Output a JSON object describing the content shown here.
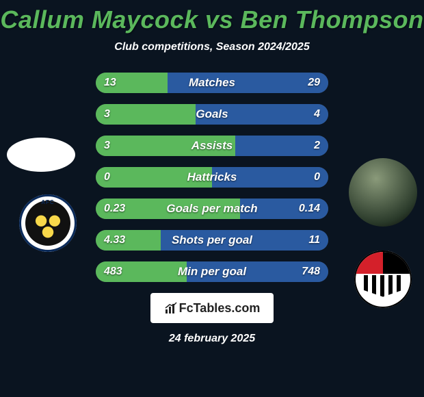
{
  "title_color": "#5bb85c",
  "player1": "Callum Maycock",
  "player2": "Ben Thompson",
  "subtitle": "Club competitions, Season 2024/2025",
  "date": "24 february 2025",
  "footer_brand": "FcTables.com",
  "colors": {
    "bar_left": "#5bb85c",
    "bar_right": "#2a5aa0",
    "bar_bg": "#4a4a4a",
    "text": "#ffffff"
  },
  "stats": [
    {
      "label": "Matches",
      "left_text": "13",
      "right_text": "29",
      "left_val": 13,
      "right_val": 29,
      "left_pct": 31,
      "right_pct": 69,
      "higher_better": true
    },
    {
      "label": "Goals",
      "left_text": "3",
      "right_text": "4",
      "left_val": 3,
      "right_val": 4,
      "left_pct": 43,
      "right_pct": 57,
      "higher_better": true
    },
    {
      "label": "Assists",
      "left_text": "3",
      "right_text": "2",
      "left_val": 3,
      "right_val": 2,
      "left_pct": 60,
      "right_pct": 40,
      "higher_better": true
    },
    {
      "label": "Hattricks",
      "left_text": "0",
      "right_text": "0",
      "left_val": 0,
      "right_val": 0,
      "left_pct": 50,
      "right_pct": 50,
      "higher_better": true
    },
    {
      "label": "Goals per match",
      "left_text": "0.23",
      "right_text": "0.14",
      "left_val": 0.23,
      "right_val": 0.14,
      "left_pct": 62,
      "right_pct": 38,
      "higher_better": true
    },
    {
      "label": "Shots per goal",
      "left_text": "4.33",
      "right_text": "11",
      "left_val": 4.33,
      "right_val": 11,
      "left_pct": 28,
      "right_pct": 72,
      "higher_better": false
    },
    {
      "label": "Min per goal",
      "left_text": "483",
      "right_text": "748",
      "left_val": 483,
      "right_val": 748,
      "left_pct": 39,
      "right_pct": 61,
      "higher_better": false
    }
  ],
  "avatars": {
    "club1_label": "AFC",
    "club2_label": ""
  }
}
